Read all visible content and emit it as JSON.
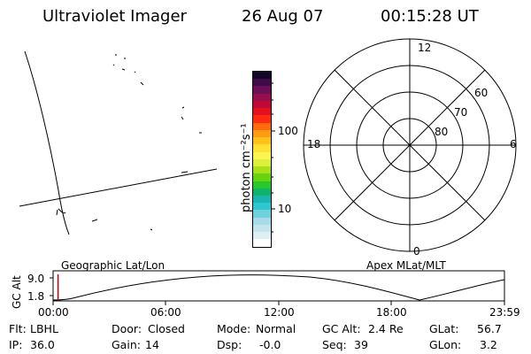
{
  "header": {
    "instrument": "Ultraviolet Imager",
    "date": "26 Aug 07",
    "time": "00:15:28 UT"
  },
  "colorbar": {
    "label": "photon cm⁻²s⁻¹",
    "ticks": [
      "100",
      "10"
    ],
    "colors": [
      "#ffffff",
      "#ddeef3",
      "#c5e3ec",
      "#a8dbe6",
      "#6fd1dc",
      "#2dc7cf",
      "#1ab5b0",
      "#0fb46c",
      "#29c82a",
      "#6ad311",
      "#a8e01a",
      "#dcef3a",
      "#fbf54f",
      "#ffe033",
      "#ffc21a",
      "#ff9b12",
      "#ff6a0a",
      "#ff2a14",
      "#e5101f",
      "#c00a35",
      "#950f4c",
      "#6a0e56",
      "#3f0a4a",
      "#14062a"
    ]
  },
  "polar": {
    "mlt_labels": {
      "top": "12",
      "bottom": "0",
      "left": "18",
      "right": "6"
    },
    "lat_labels": [
      "60",
      "70",
      "80"
    ]
  },
  "orbit": {
    "ylabel": "GC Alt",
    "y_ticks": [
      "9.0",
      "1.8"
    ],
    "left_label": "Geographic Lat/Lon",
    "right_label": "Apex MLat/MLT",
    "time_ticks": [
      "00:00",
      "06:00",
      "12:00",
      "18:00",
      "23:59"
    ],
    "current_time_fraction": 0.011
  },
  "info": {
    "rows": [
      [
        {
          "label": "Flt:",
          "value": "LBHL"
        },
        {
          "label": "Door:",
          "value": "Closed"
        },
        {
          "label": "Mode:",
          "value": "Normal"
        },
        {
          "label": "GC Alt:",
          "value": "2.4 Re"
        },
        {
          "label": "GLat:",
          "value": "56.7"
        }
      ],
      [
        {
          "label": "IP:",
          "value": "36.0"
        },
        {
          "label": "Gain:",
          "value": "14"
        },
        {
          "label": "Dsp:",
          "value": "-0.0"
        },
        {
          "label": "Seq:",
          "value": "39"
        },
        {
          "label": "GLon:",
          "value": "3.2"
        }
      ]
    ]
  }
}
